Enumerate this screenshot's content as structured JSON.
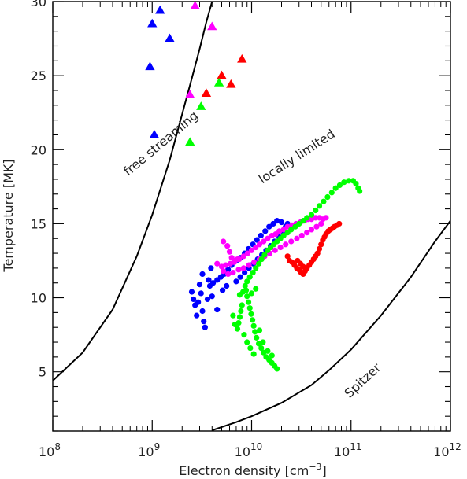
{
  "chart_data": {
    "type": "scatter",
    "x_scale": "log",
    "xlim": [
      100000000,
      1000000000000
    ],
    "ylim": [
      1,
      30
    ],
    "xlabel": {
      "prefix": "Electron density [cm",
      "exp": "−3",
      "suffix": "]"
    },
    "ylabel": "Temperature [MK]",
    "x_ticks": [
      {
        "value": 100000000,
        "base": "10",
        "exp": "8"
      },
      {
        "value": 1000000000,
        "base": "10",
        "exp": "9"
      },
      {
        "value": 10000000000,
        "base": "10",
        "exp": "10"
      },
      {
        "value": 100000000000,
        "base": "10",
        "exp": "11"
      },
      {
        "value": 1000000000000,
        "base": "10",
        "exp": "12"
      }
    ],
    "y_ticks": [
      5,
      10,
      15,
      20,
      25,
      30
    ],
    "grid": false,
    "annotations": [
      {
        "text": "free streaming",
        "x": 1300000000,
        "y": 20.2
      },
      {
        "text": "locally limited",
        "x": 30000000000,
        "y": 19.3
      },
      {
        "text": "Spitzer",
        "x": 140000000000,
        "y": 4.2
      }
    ],
    "curves": [
      {
        "label": "free streaming",
        "color": "#000000",
        "points": [
          [
            100000000,
            4.4
          ],
          [
            200000000,
            6.3
          ],
          [
            400000000,
            9.2
          ],
          [
            700000000,
            12.8
          ],
          [
            1000000000,
            15.6
          ],
          [
            1500000000,
            19.3
          ],
          [
            2000000000,
            22.4
          ],
          [
            2500000000,
            24.8
          ],
          [
            3000000000,
            26.8
          ],
          [
            3500000000,
            28.6
          ],
          [
            4000000000,
            30
          ]
        ]
      },
      {
        "label": "Spitzer",
        "color": "#000000",
        "points": [
          [
            4000000000,
            1.05
          ],
          [
            7000000000,
            1.6
          ],
          [
            10000000000,
            2.0
          ],
          [
            20000000000,
            2.9
          ],
          [
            40000000000,
            4.1
          ],
          [
            60000000000,
            5.1
          ],
          [
            100000000000,
            6.5
          ],
          [
            200000000000,
            8.8
          ],
          [
            400000000000,
            11.4
          ],
          [
            700000000000,
            13.8
          ],
          [
            1000000000000,
            15.2
          ]
        ]
      }
    ],
    "series": [
      {
        "color": "#0000ff",
        "marker": "triangle",
        "points": [
          [
            1200000000,
            29.4
          ],
          [
            1000000000,
            28.5
          ],
          [
            1500000000,
            27.5
          ],
          [
            950000000,
            25.6
          ],
          [
            1050000000,
            21.0
          ]
        ]
      },
      {
        "color": "#ff00ff",
        "marker": "triangle",
        "points": [
          [
            2700000000,
            29.7
          ],
          [
            4000000000,
            28.3
          ],
          [
            2400000000,
            23.7
          ]
        ]
      },
      {
        "color": "#ff0000",
        "marker": "triangle",
        "points": [
          [
            8000000000,
            26.1
          ],
          [
            5000000000,
            25.0
          ],
          [
            6200000000,
            24.4
          ],
          [
            3500000000,
            23.8
          ]
        ]
      },
      {
        "color": "#00ff00",
        "marker": "triangle",
        "points": [
          [
            4700000000,
            24.5
          ],
          [
            3100000000,
            22.9
          ],
          [
            2400000000,
            20.5
          ]
        ]
      },
      {
        "color": "#0000ff",
        "marker": "circle",
        "points": [
          [
            2500000000,
            10.4
          ],
          [
            2600000000,
            9.9
          ],
          [
            2700000000,
            9.5
          ],
          [
            2800000000,
            8.8
          ],
          [
            2900000000,
            9.7
          ],
          [
            3100000000,
            10.3
          ],
          [
            3200000000,
            9.1
          ],
          [
            3300000000,
            8.4
          ],
          [
            3400000000,
            8.0
          ],
          [
            3000000000,
            10.9
          ],
          [
            3200000000,
            11.6
          ],
          [
            3600000000,
            9.9
          ],
          [
            3800000000,
            10.8
          ],
          [
            4100000000,
            11.0
          ],
          [
            4500000000,
            11.2
          ],
          [
            4900000000,
            11.4
          ],
          [
            5300000000,
            11.6
          ],
          [
            5800000000,
            11.9
          ],
          [
            6300000000,
            12.2
          ],
          [
            7000000000,
            12.5
          ],
          [
            7700000000,
            12.7
          ],
          [
            8500000000,
            13.0
          ],
          [
            9300000000,
            13.3
          ],
          [
            10300000000,
            13.6
          ],
          [
            11300000000,
            13.9
          ],
          [
            12400000000,
            14.2
          ],
          [
            13700000000,
            14.5
          ],
          [
            15000000000,
            14.8
          ],
          [
            16500000000,
            15.0
          ],
          [
            18000000000,
            15.2
          ],
          [
            20000000000,
            15.1
          ],
          [
            22000000000,
            14.8
          ],
          [
            23000000000,
            15.0
          ],
          [
            21000000000,
            14.4
          ],
          [
            19000000000,
            14.1
          ],
          [
            17000000000,
            13.8
          ],
          [
            15500000000,
            13.5
          ],
          [
            14000000000,
            13.2
          ],
          [
            12700000000,
            12.9
          ],
          [
            11500000000,
            12.6
          ],
          [
            10400000000,
            12.3
          ],
          [
            9400000000,
            12.0
          ],
          [
            8500000000,
            11.7
          ],
          [
            7700000000,
            11.4
          ],
          [
            7000000000,
            11.1
          ],
          [
            4500000000,
            9.2
          ],
          [
            4000000000,
            10.1
          ],
          [
            3700000000,
            11.2
          ],
          [
            3900000000,
            12.0
          ],
          [
            5100000000,
            10.5
          ],
          [
            5600000000,
            10.8
          ]
        ]
      },
      {
        "color": "#ff00ff",
        "marker": "circle",
        "points": [
          [
            5200000000,
            13.8
          ],
          [
            5700000000,
            13.5
          ],
          [
            6000000000,
            13.1
          ],
          [
            6300000000,
            12.7
          ],
          [
            6700000000,
            12.4
          ],
          [
            7200000000,
            12.6
          ],
          [
            4500000000,
            12.3
          ],
          [
            5000000000,
            12.1
          ],
          [
            5500000000,
            12.2
          ],
          [
            6100000000,
            12.3
          ],
          [
            6800000000,
            12.5
          ],
          [
            7500000000,
            12.6
          ],
          [
            8300000000,
            12.8
          ],
          [
            9100000000,
            13.0
          ],
          [
            10000000000,
            13.2
          ],
          [
            11000000000,
            13.4
          ],
          [
            12000000000,
            13.6
          ],
          [
            13200000000,
            13.8
          ],
          [
            14500000000,
            14.0
          ],
          [
            16000000000,
            14.2
          ],
          [
            17500000000,
            14.3
          ],
          [
            19000000000,
            14.5
          ],
          [
            21000000000,
            14.6
          ],
          [
            23000000000,
            14.8
          ],
          [
            25500000000,
            14.9
          ],
          [
            28000000000,
            15.0
          ],
          [
            31000000000,
            15.1
          ],
          [
            34000000000,
            15.2
          ],
          [
            37000000000,
            15.3
          ],
          [
            40000000000,
            15.3
          ],
          [
            44000000000,
            15.4
          ],
          [
            48000000000,
            15.4
          ],
          [
            52000000000,
            15.3
          ],
          [
            56000000000,
            15.4
          ],
          [
            50000000000,
            15.0
          ],
          [
            45000000000,
            14.8
          ],
          [
            40000000000,
            14.6
          ],
          [
            36000000000,
            14.4
          ],
          [
            32000000000,
            14.2
          ],
          [
            28500000000,
            14.0
          ],
          [
            25000000000,
            13.8
          ],
          [
            22000000000,
            13.6
          ],
          [
            19500000000,
            13.4
          ],
          [
            17200000000,
            13.2
          ],
          [
            15200000000,
            13.0
          ],
          [
            13500000000,
            12.8
          ],
          [
            12000000000,
            12.6
          ],
          [
            10600000000,
            12.4
          ],
          [
            9400000000,
            12.2
          ],
          [
            8300000000,
            12.0
          ],
          [
            7400000000,
            11.9
          ],
          [
            6500000000,
            11.7
          ],
          [
            5800000000,
            11.6
          ],
          [
            5200000000,
            11.8
          ]
        ]
      },
      {
        "color": "#ff0000",
        "marker": "circle",
        "points": [
          [
            23000000000,
            12.8
          ],
          [
            24000000000,
            12.5
          ],
          [
            25500000000,
            12.4
          ],
          [
            27000000000,
            12.2
          ],
          [
            28500000000,
            12.0
          ],
          [
            30000000000,
            11.9
          ],
          [
            31500000000,
            11.7
          ],
          [
            33000000000,
            11.6
          ],
          [
            34500000000,
            11.8
          ],
          [
            36000000000,
            12.0
          ],
          [
            38000000000,
            12.2
          ],
          [
            40000000000,
            12.4
          ],
          [
            42000000000,
            12.6
          ],
          [
            44000000000,
            12.8
          ],
          [
            46000000000,
            13.0
          ],
          [
            48000000000,
            13.3
          ],
          [
            50000000000,
            13.6
          ],
          [
            52000000000,
            13.9
          ],
          [
            54000000000,
            14.1
          ],
          [
            56000000000,
            14.3
          ],
          [
            59000000000,
            14.5
          ],
          [
            62000000000,
            14.6
          ],
          [
            65000000000,
            14.7
          ],
          [
            68000000000,
            14.8
          ],
          [
            72000000000,
            14.9
          ],
          [
            76000000000,
            15.0
          ],
          [
            29000000000,
            12.5
          ],
          [
            31000000000,
            12.3
          ],
          [
            33000000000,
            12.1
          ],
          [
            35000000000,
            12.0
          ]
        ]
      },
      {
        "color": "#00ff00",
        "marker": "circle",
        "points": [
          [
            18000000000,
            5.2
          ],
          [
            17000000000,
            5.4
          ],
          [
            16000000000,
            5.6
          ],
          [
            15000000000,
            5.8
          ],
          [
            14000000000,
            6.0
          ],
          [
            13200000000,
            6.3
          ],
          [
            12500000000,
            6.6
          ],
          [
            11800000000,
            6.9
          ],
          [
            11200000000,
            7.3
          ],
          [
            10800000000,
            7.7
          ],
          [
            10500000000,
            8.1
          ],
          [
            10200000000,
            8.5
          ],
          [
            9900000000,
            8.9
          ],
          [
            9600000000,
            9.3
          ],
          [
            9300000000,
            9.7
          ],
          [
            9000000000,
            10.1
          ],
          [
            8800000000,
            10.5
          ],
          [
            8600000000,
            10.8
          ],
          [
            9000000000,
            11.1
          ],
          [
            9600000000,
            11.4
          ],
          [
            10300000000,
            11.7
          ],
          [
            11000000000,
            12.0
          ],
          [
            11800000000,
            12.3
          ],
          [
            12600000000,
            12.6
          ],
          [
            13500000000,
            12.9
          ],
          [
            14500000000,
            13.2
          ],
          [
            15500000000,
            13.4
          ],
          [
            16700000000,
            13.6
          ],
          [
            18000000000,
            13.8
          ],
          [
            19500000000,
            14.0
          ],
          [
            21000000000,
            14.2
          ],
          [
            23000000000,
            14.4
          ],
          [
            25000000000,
            14.6
          ],
          [
            27500000000,
            14.8
          ],
          [
            30000000000,
            15.0
          ],
          [
            33000000000,
            15.2
          ],
          [
            36000000000,
            15.4
          ],
          [
            40000000000,
            15.6
          ],
          [
            44000000000,
            15.9
          ],
          [
            48000000000,
            16.2
          ],
          [
            53000000000,
            16.5
          ],
          [
            58000000000,
            16.8
          ],
          [
            64000000000,
            17.1
          ],
          [
            70000000000,
            17.4
          ],
          [
            77000000000,
            17.6
          ],
          [
            85000000000,
            17.8
          ],
          [
            95000000000,
            17.9
          ],
          [
            105000000000,
            17.9
          ],
          [
            112000000000,
            17.7
          ],
          [
            118000000000,
            17.4
          ],
          [
            122000000000,
            17.2
          ],
          [
            8000000000,
            9.5
          ],
          [
            7800000000,
            9.1
          ],
          [
            7600000000,
            8.7
          ],
          [
            7400000000,
            8.3
          ],
          [
            7200000000,
            7.9
          ],
          [
            8400000000,
            7.5
          ],
          [
            9000000000,
            7.0
          ],
          [
            9700000000,
            6.6
          ],
          [
            10500000000,
            6.2
          ],
          [
            6800000000,
            8.2
          ],
          [
            6500000000,
            8.8
          ],
          [
            7600000000,
            10.2
          ],
          [
            8200000000,
            10.4
          ],
          [
            12000000000,
            7.8
          ],
          [
            13000000000,
            7.0
          ],
          [
            14500000000,
            6.4
          ],
          [
            16000000000,
            6.1
          ],
          [
            10000000000,
            10.3
          ],
          [
            11000000000,
            10.6
          ]
        ]
      }
    ]
  }
}
